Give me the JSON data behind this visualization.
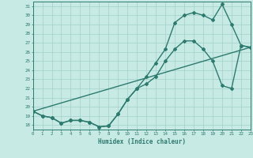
{
  "xlabel": "Humidex (Indice chaleur)",
  "background_color": "#c8eae5",
  "grid_color": "#a8d4ce",
  "line_color": "#2d7a6e",
  "xlim": [
    0,
    23
  ],
  "ylim": [
    17.5,
    31.5
  ],
  "xticks": [
    0,
    1,
    2,
    3,
    4,
    5,
    6,
    7,
    8,
    9,
    10,
    11,
    12,
    13,
    14,
    15,
    16,
    17,
    18,
    19,
    20,
    21,
    22,
    23
  ],
  "yticks": [
    18,
    19,
    20,
    21,
    22,
    23,
    24,
    25,
    26,
    27,
    28,
    29,
    30,
    31
  ],
  "line1_x": [
    0,
    1,
    2,
    3,
    4,
    5,
    6,
    7,
    8,
    9,
    10,
    11,
    12,
    13,
    14,
    15,
    16,
    17,
    18,
    19,
    20,
    21,
    22,
    23
  ],
  "line1_y": [
    19.5,
    19.0,
    18.8,
    18.2,
    18.5,
    18.5,
    18.3,
    17.8,
    17.9,
    19.2,
    20.8,
    22.0,
    22.5,
    23.3,
    25.0,
    26.3,
    27.2,
    27.2,
    26.3,
    25.0,
    22.3,
    22.0,
    26.7,
    26.5
  ],
  "line2_x": [
    0,
    1,
    2,
    3,
    4,
    5,
    6,
    7,
    8,
    9,
    10,
    11,
    12,
    13,
    14,
    15,
    16,
    17,
    18,
    19,
    20,
    21,
    22,
    23
  ],
  "line2_y": [
    19.5,
    19.0,
    18.8,
    18.2,
    18.5,
    18.5,
    18.3,
    17.8,
    17.9,
    19.2,
    20.8,
    22.0,
    23.3,
    24.8,
    26.3,
    29.2,
    30.0,
    30.3,
    30.0,
    29.5,
    31.2,
    29.0,
    26.7,
    26.5
  ],
  "line3_x": [
    0,
    23
  ],
  "line3_y": [
    19.5,
    26.5
  ],
  "marker": "D",
  "markersize": 2.0,
  "linewidth": 1.0
}
